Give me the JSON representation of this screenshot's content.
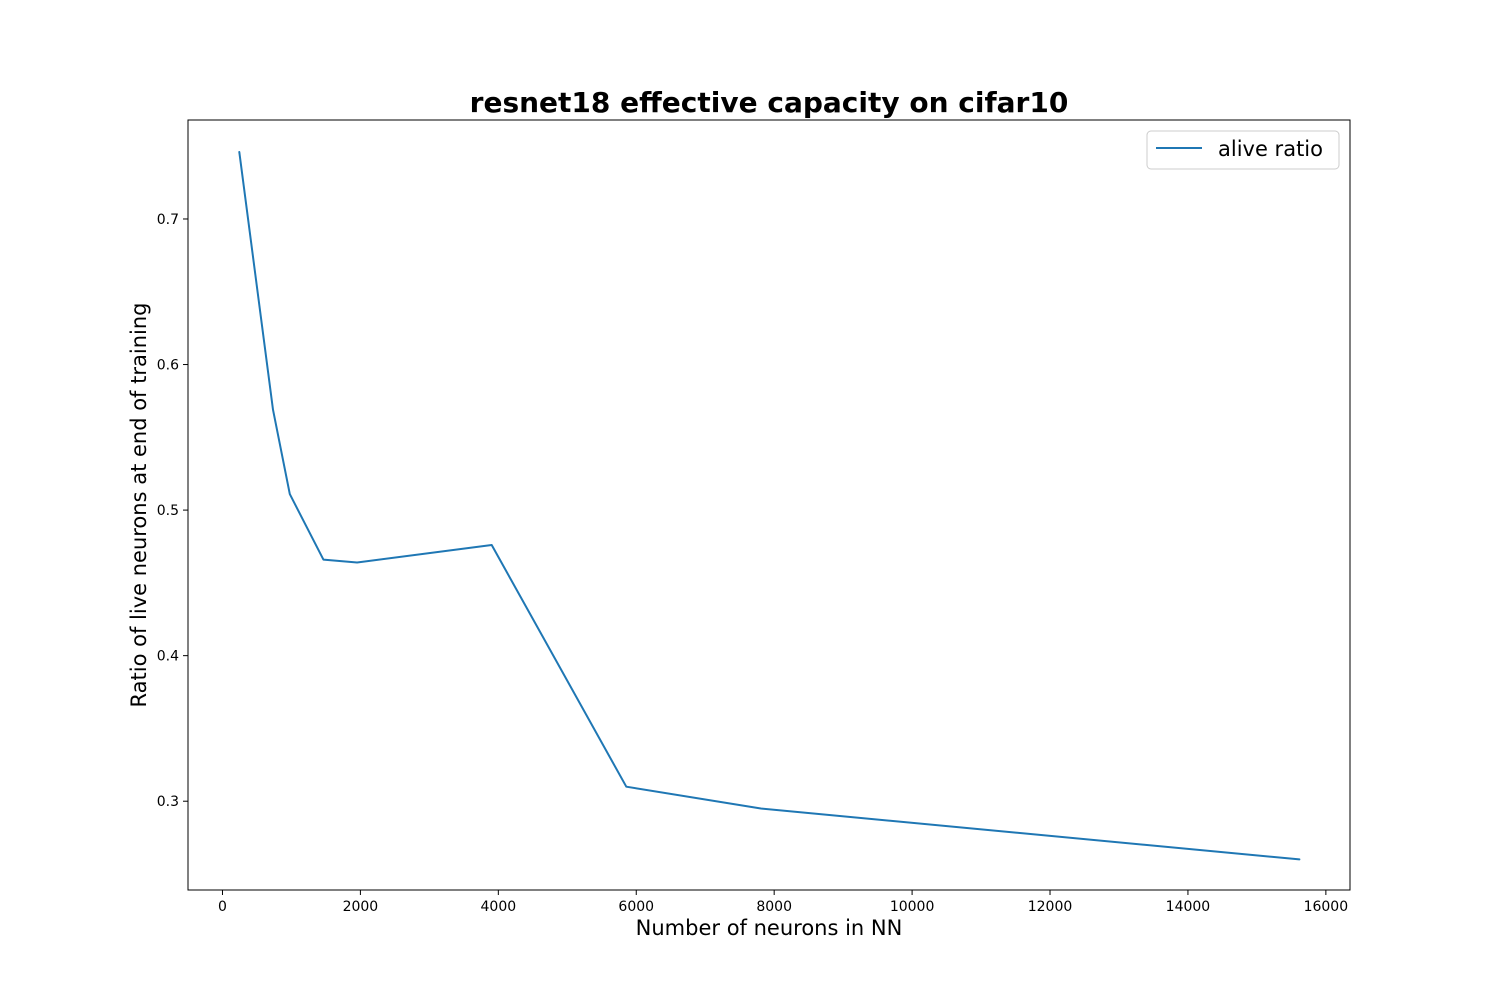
{
  "chart_data": {
    "type": "line",
    "title": "resnet18 effective capacity on cifar10",
    "xlabel": "Number of neurons in NN",
    "ylabel": "Ratio of live neurons at end of training",
    "xlim": [
      -500,
      16350
    ],
    "ylim": [
      0.239,
      0.768
    ],
    "xticks": [
      0,
      2000,
      4000,
      6000,
      8000,
      10000,
      12000,
      14000,
      16000
    ],
    "yticks": [
      0.3,
      0.4,
      0.5,
      0.6,
      0.7
    ],
    "xtick_labels": [
      "0",
      "2000",
      "4000",
      "6000",
      "8000",
      "10000",
      "12000",
      "14000",
      "16000"
    ],
    "ytick_labels": [
      "0.3",
      "0.4",
      "0.5",
      "0.6",
      "0.7"
    ],
    "grid": false,
    "legend_position": "top-right",
    "series": [
      {
        "name": "alive ratio",
        "color": "#1f77b4",
        "x": [
          244,
          732,
          976,
          1464,
          1952,
          3904,
          5856,
          7808,
          15616
        ],
        "y": [
          0.746,
          0.569,
          0.511,
          0.466,
          0.464,
          0.476,
          0.31,
          0.295,
          0.26
        ]
      }
    ]
  }
}
